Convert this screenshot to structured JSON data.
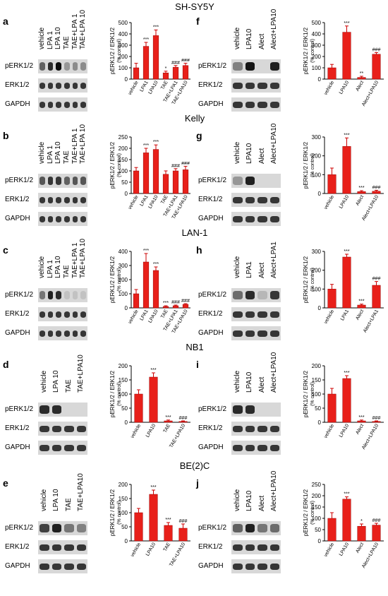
{
  "figure": {
    "row_titles": [
      "SH-SY5Y",
      "Kelly",
      "LAN-1",
      "NB1",
      "BE(2)C"
    ],
    "blot_rows": [
      "pERK1/2",
      "ERK1/2",
      "GAPDH"
    ],
    "ylabel": "pERK1/2 / ERK1/2",
    "ylabel2": "(% control)"
  },
  "panels": [
    {
      "id": "a",
      "label": "a",
      "lanes": [
        "vehicle",
        "LPA 1",
        "LPA 10",
        "TAE",
        "TAE+LPA 1",
        "TAE+LPA 10"
      ]
    },
    {
      "id": "b",
      "label": "b",
      "lanes": [
        "vehicle",
        "LPA 1",
        "LPA 10",
        "TAE",
        "TAE+LPA 1",
        "TAE+LPA 10"
      ]
    },
    {
      "id": "c",
      "label": "c",
      "lanes": [
        "vehicle",
        "LPA 1",
        "LPA 10",
        "TAE",
        "TAE+LPA 1",
        "TAE+LPA 10"
      ]
    },
    {
      "id": "d",
      "label": "d",
      "lanes": [
        "vehicle",
        "LPA 10",
        "TAE",
        "TAE+LPA10"
      ]
    },
    {
      "id": "e",
      "label": "e",
      "lanes": [
        "vehicle",
        "LPA 10",
        "TAE",
        "TAE+LPA10"
      ]
    },
    {
      "id": "f",
      "label": "f",
      "lanes": [
        "vehicle",
        "LPA10",
        "Alect",
        "Alect+LPA10"
      ]
    },
    {
      "id": "g",
      "label": "g",
      "lanes": [
        "vehicle",
        "LPA10",
        "Alect",
        "Alect+LPA10"
      ]
    },
    {
      "id": "h",
      "label": "h",
      "lanes": [
        "vehicle",
        "LPA1",
        "Alect",
        "Alect+LPA1"
      ]
    },
    {
      "id": "i",
      "label": "i",
      "lanes": [
        "vehicle",
        "LPA10",
        "Alect",
        "Alect+LPA10"
      ]
    },
    {
      "id": "j",
      "label": "j",
      "lanes": [
        "vehicle",
        "LPA10",
        "Alect",
        "Alect+LPA10"
      ]
    }
  ],
  "chart_data": [
    {
      "panel": "a",
      "type": "bar",
      "categories": [
        "vehicle",
        "LPA1",
        "LPA10",
        "TAE",
        "TAE+LPA1",
        "TAE+LPA10"
      ],
      "values": [
        100,
        290,
        385,
        55,
        105,
        120
      ],
      "errors": [
        40,
        35,
        50,
        15,
        15,
        20
      ],
      "ylim": [
        0,
        500
      ],
      "yticks": [
        0,
        100,
        200,
        300,
        400,
        500
      ],
      "annotations": [
        "",
        "***",
        "***",
        "*",
        "###",
        "###"
      ]
    },
    {
      "panel": "b",
      "type": "bar",
      "categories": [
        "vehicle",
        "LPA1",
        "LPA10",
        "TAE",
        "TAE+LPA1",
        "TAE+LPA10"
      ],
      "values": [
        100,
        180,
        195,
        85,
        100,
        105
      ],
      "errors": [
        15,
        20,
        20,
        15,
        10,
        15
      ],
      "ylim": [
        0,
        250
      ],
      "yticks": [
        0,
        50,
        100,
        150,
        200,
        250
      ],
      "annotations": [
        "",
        "***",
        "***",
        "",
        "###",
        "###"
      ]
    },
    {
      "panel": "c",
      "type": "bar",
      "categories": [
        "vehicle",
        "LPA1",
        "LPA10",
        "TAE",
        "TAE+LPA1",
        "TAE+LPA10"
      ],
      "values": [
        100,
        325,
        265,
        10,
        15,
        25
      ],
      "errors": [
        30,
        60,
        25,
        5,
        5,
        5
      ],
      "ylim": [
        0,
        400
      ],
      "yticks": [
        0,
        100,
        200,
        300,
        400
      ],
      "annotations": [
        "",
        "***",
        "***",
        "***",
        "###",
        "###"
      ]
    },
    {
      "panel": "d",
      "type": "bar",
      "categories": [
        "vehicle",
        "LPA10",
        "TAE",
        "TAE+LPA10"
      ],
      "values": [
        100,
        160,
        5,
        3
      ],
      "errors": [
        15,
        15,
        3,
        2
      ],
      "ylim": [
        0,
        200
      ],
      "yticks": [
        0,
        50,
        100,
        150,
        200
      ],
      "annotations": [
        "",
        "***",
        "***",
        "###"
      ]
    },
    {
      "panel": "e",
      "type": "bar",
      "categories": [
        "vehicle",
        "LPA10",
        "TAE",
        "TAE+LPA10"
      ],
      "values": [
        100,
        165,
        55,
        45
      ],
      "errors": [
        15,
        15,
        10,
        15
      ],
      "ylim": [
        0,
        200
      ],
      "yticks": [
        0,
        50,
        100,
        150,
        200
      ],
      "annotations": [
        "",
        "***",
        "***",
        "###"
      ]
    },
    {
      "panel": "f",
      "type": "bar",
      "categories": [
        "vehicle",
        "LPA10",
        "Alect",
        "Alect+LPA10"
      ],
      "values": [
        100,
        415,
        15,
        220
      ],
      "errors": [
        30,
        55,
        10,
        15
      ],
      "ylim": [
        0,
        500
      ],
      "yticks": [
        0,
        100,
        200,
        300,
        400,
        500
      ],
      "annotations": [
        "",
        "***",
        "**",
        "###"
      ]
    },
    {
      "panel": "g",
      "type": "bar",
      "categories": [
        "vehicle",
        "LPA10",
        "Alect",
        "Alect+LPA10"
      ],
      "values": [
        100,
        250,
        10,
        12
      ],
      "errors": [
        35,
        45,
        5,
        5
      ],
      "ylim": [
        0,
        300
      ],
      "yticks": [
        0,
        100,
        200,
        300
      ],
      "annotations": [
        "",
        "***",
        "***",
        "###"
      ]
    },
    {
      "panel": "h",
      "type": "bar",
      "categories": [
        "vehicle",
        "LPA1",
        "Alect",
        "Alect+LPA1"
      ],
      "values": [
        100,
        270,
        15,
        120
      ],
      "errors": [
        25,
        15,
        5,
        20
      ],
      "ylim": [
        0,
        300
      ],
      "yticks": [
        0,
        100,
        200,
        300
      ],
      "annotations": [
        "",
        "***",
        "***",
        "###"
      ]
    },
    {
      "panel": "i",
      "type": "bar",
      "categories": [
        "vehicle",
        "LPA10",
        "Alect",
        "Alect+LPA10"
      ],
      "values": [
        100,
        155,
        5,
        3
      ],
      "errors": [
        20,
        10,
        3,
        2
      ],
      "ylim": [
        0,
        200
      ],
      "yticks": [
        0,
        50,
        100,
        150,
        200
      ],
      "annotations": [
        "",
        "***",
        "***",
        "###"
      ]
    },
    {
      "panel": "j",
      "type": "bar",
      "categories": [
        "vehicle",
        "LPA10",
        "Alect",
        "Alect+LPA10"
      ],
      "values": [
        100,
        185,
        65,
        70
      ],
      "errors": [
        25,
        10,
        10,
        8
      ],
      "ylim": [
        0,
        250
      ],
      "yticks": [
        0,
        50,
        100,
        150,
        200,
        250
      ],
      "annotations": [
        "",
        "***",
        "*",
        "###"
      ]
    }
  ]
}
